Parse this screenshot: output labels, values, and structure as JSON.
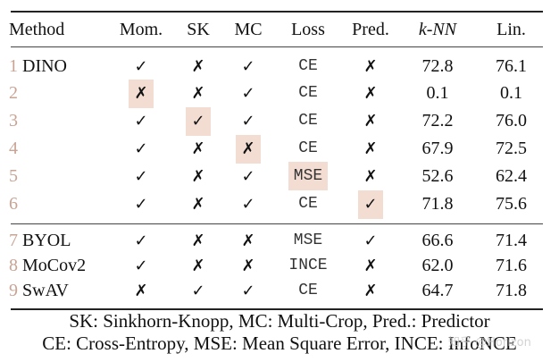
{
  "table": {
    "headers": {
      "method": "Method",
      "mom": "Mom.",
      "sk": "SK",
      "mc": "MC",
      "loss": "Loss",
      "pred": "Pred.",
      "knn": "k-NN",
      "lin": "Lin."
    },
    "rows": [
      {
        "num": "1",
        "method": "DINO",
        "mom": "✓",
        "sk": "✗",
        "mc": "✓",
        "loss": "CE",
        "pred": "✗",
        "knn": "72.8",
        "lin": "76.1",
        "highlight": ""
      },
      {
        "num": "2",
        "method": "",
        "mom": "✗",
        "sk": "✗",
        "mc": "✓",
        "loss": "CE",
        "pred": "✗",
        "knn": "0.1",
        "lin": "0.1",
        "highlight": "mom"
      },
      {
        "num": "3",
        "method": "",
        "mom": "✓",
        "sk": "✓",
        "mc": "✓",
        "loss": "CE",
        "pred": "✗",
        "knn": "72.2",
        "lin": "76.0",
        "highlight": "sk"
      },
      {
        "num": "4",
        "method": "",
        "mom": "✓",
        "sk": "✗",
        "mc": "✗",
        "loss": "CE",
        "pred": "✗",
        "knn": "67.9",
        "lin": "72.5",
        "highlight": "mc"
      },
      {
        "num": "5",
        "method": "",
        "mom": "✓",
        "sk": "✗",
        "mc": "✓",
        "loss": "MSE",
        "pred": "✗",
        "knn": "52.6",
        "lin": "62.4",
        "highlight": "loss"
      },
      {
        "num": "6",
        "method": "",
        "mom": "✓",
        "sk": "✗",
        "mc": "✓",
        "loss": "CE",
        "pred": "✓",
        "knn": "71.8",
        "lin": "75.6",
        "highlight": "pred"
      },
      {
        "num": "7",
        "method": "BYOL",
        "mom": "✓",
        "sk": "✗",
        "mc": "✗",
        "loss": "MSE",
        "pred": "✓",
        "knn": "66.6",
        "lin": "71.4",
        "highlight": ""
      },
      {
        "num": "8",
        "method": "MoCov2",
        "mom": "✓",
        "sk": "✗",
        "mc": "✗",
        "loss": "INCE",
        "pred": "✗",
        "knn": "62.0",
        "lin": "71.6",
        "highlight": ""
      },
      {
        "num": "9",
        "method": "SwAV",
        "mom": "✗",
        "sk": "✓",
        "mc": "✓",
        "loss": "CE",
        "pred": "✗",
        "knn": "64.7",
        "lin": "71.8",
        "highlight": ""
      }
    ]
  },
  "caption": {
    "line1": "SK: Sinkhorn-Knopp, MC: Multi-Crop, Pred.: Predictor",
    "line2": "CE: Cross-Entropy, MSE: Mean Square Error, INCE: InfoNCE"
  },
  "watermark": "知乎 @Horizon",
  "colors": {
    "highlight": "#f3ddd3",
    "row_number": "#c9a393"
  }
}
